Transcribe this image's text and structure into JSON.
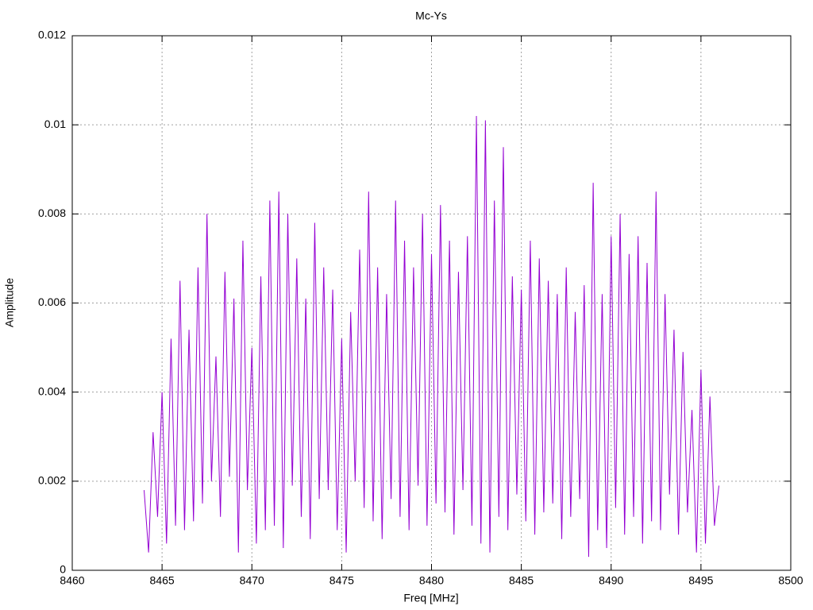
{
  "chart_data": {
    "type": "line",
    "title": "Mc-Ys",
    "x_label": "Freq [MHz]",
    "y_label": "Amplitude",
    "color": "#9400d3",
    "grid": true,
    "xlim": [
      8460,
      8500
    ],
    "xticks": [
      8460,
      8465,
      8470,
      8475,
      8480,
      8485,
      8490,
      8495,
      8500
    ],
    "ylim": [
      0,
      0.012
    ],
    "yticks": [
      0,
      0.002,
      0.004,
      0.006,
      0.008,
      0.01,
      0.012
    ],
    "x": [
      8464,
      8464.25,
      8464.5,
      8464.75,
      8465,
      8465.25,
      8465.5,
      8465.75,
      8466,
      8466.25,
      8466.5,
      8466.75,
      8467,
      8467.25,
      8467.5,
      8467.75,
      8468,
      8468.25,
      8468.5,
      8468.75,
      8469,
      8469.25,
      8469.5,
      8469.75,
      8470,
      8470.25,
      8470.5,
      8470.75,
      8471,
      8471.25,
      8471.5,
      8471.75,
      8472,
      8472.25,
      8472.5,
      8472.75,
      8473,
      8473.25,
      8473.5,
      8473.75,
      8474,
      8474.25,
      8474.5,
      8474.75,
      8475,
      8475.25,
      8475.5,
      8475.75,
      8476,
      8476.25,
      8476.5,
      8476.75,
      8477,
      8477.25,
      8477.5,
      8477.75,
      8478,
      8478.25,
      8478.5,
      8478.75,
      8479,
      8479.25,
      8479.5,
      8479.75,
      8480,
      8480.25,
      8480.5,
      8480.75,
      8481,
      8481.25,
      8481.5,
      8481.75,
      8482,
      8482.25,
      8482.5,
      8482.75,
      8483,
      8483.25,
      8483.5,
      8483.75,
      8484,
      8484.25,
      8484.5,
      8484.75,
      8485,
      8485.25,
      8485.5,
      8485.75,
      8486,
      8486.25,
      8486.5,
      8486.75,
      8487,
      8487.25,
      8487.5,
      8487.75,
      8488,
      8488.25,
      8488.5,
      8488.75,
      8489,
      8489.25,
      8489.5,
      8489.75,
      8490,
      8490.25,
      8490.5,
      8490.75,
      8491,
      8491.25,
      8491.5,
      8491.75,
      8492,
      8492.25,
      8492.5,
      8492.75,
      8493,
      8493.25,
      8493.5,
      8493.75,
      8494,
      8494.25,
      8494.5,
      8494.75,
      8495,
      8495.25,
      8495.5,
      8495.75,
      8496
    ],
    "values": [
      0.0018,
      0.0004,
      0.0031,
      0.0012,
      0.004,
      0.0006,
      0.0052,
      0.001,
      0.0065,
      0.0009,
      0.0054,
      0.0011,
      0.0068,
      0.0015,
      0.008,
      0.002,
      0.0048,
      0.0012,
      0.0067,
      0.0021,
      0.0061,
      0.0004,
      0.0074,
      0.0018,
      0.005,
      0.0006,
      0.0066,
      0.0009,
      0.0083,
      0.001,
      0.0085,
      0.0005,
      0.008,
      0.0019,
      0.007,
      0.0012,
      0.0061,
      0.0007,
      0.0078,
      0.0016,
      0.0068,
      0.0018,
      0.0063,
      0.0009,
      0.0052,
      0.0004,
      0.0058,
      0.002,
      0.0072,
      0.0014,
      0.0085,
      0.0011,
      0.0068,
      0.0007,
      0.0062,
      0.0016,
      0.0083,
      0.0012,
      0.0074,
      0.0009,
      0.0068,
      0.0019,
      0.008,
      0.001,
      0.0071,
      0.0015,
      0.0082,
      0.0013,
      0.0074,
      0.0008,
      0.0067,
      0.0018,
      0.0075,
      0.001,
      0.0102,
      0.0006,
      0.0101,
      0.0004,
      0.0083,
      0.0012,
      0.0095,
      0.0009,
      0.0066,
      0.0017,
      0.0063,
      0.0011,
      0.0074,
      0.0008,
      0.007,
      0.0013,
      0.0065,
      0.0015,
      0.0062,
      0.0007,
      0.0068,
      0.0012,
      0.0058,
      0.0016,
      0.0064,
      0.0003,
      0.0087,
      0.0009,
      0.0062,
      0.0005,
      0.0075,
      0.0014,
      0.008,
      0.0008,
      0.0071,
      0.0012,
      0.0075,
      0.0006,
      0.0069,
      0.0011,
      0.0085,
      0.0009,
      0.0062,
      0.0017,
      0.0054,
      0.0008,
      0.0049,
      0.0013,
      0.0036,
      0.0004,
      0.0045,
      0.0006,
      0.0039,
      0.001,
      0.0019
    ]
  }
}
